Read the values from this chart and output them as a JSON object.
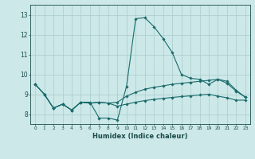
{
  "title": "",
  "xlabel": "Humidex (Indice chaleur)",
  "bg_color": "#cce8e8",
  "grid_color": "#aacccc",
  "line_color": "#1a6b6b",
  "xlim": [
    -0.5,
    23.5
  ],
  "ylim": [
    7.5,
    13.5
  ],
  "xticks": [
    0,
    1,
    2,
    3,
    4,
    5,
    6,
    7,
    8,
    9,
    10,
    11,
    12,
    13,
    14,
    15,
    16,
    17,
    18,
    19,
    20,
    21,
    22,
    23
  ],
  "yticks": [
    8,
    9,
    10,
    11,
    12,
    13
  ],
  "series": [
    [
      9.5,
      9.0,
      8.3,
      8.5,
      8.2,
      8.6,
      8.6,
      7.8,
      7.8,
      7.7,
      9.4,
      12.8,
      12.85,
      12.4,
      11.8,
      11.1,
      10.0,
      9.8,
      9.75,
      9.5,
      9.75,
      9.55,
      9.15,
      8.85
    ],
    [
      9.5,
      9.0,
      8.3,
      8.5,
      8.2,
      8.6,
      8.55,
      8.6,
      8.55,
      8.6,
      8.9,
      9.1,
      9.25,
      9.35,
      9.42,
      9.5,
      9.55,
      9.6,
      9.65,
      9.7,
      9.75,
      9.65,
      9.2,
      8.85
    ],
    [
      9.5,
      9.0,
      8.3,
      8.5,
      8.2,
      8.6,
      8.55,
      8.6,
      8.55,
      8.4,
      8.5,
      8.6,
      8.68,
      8.74,
      8.79,
      8.84,
      8.88,
      8.92,
      8.96,
      9.0,
      8.9,
      8.82,
      8.7,
      8.7
    ]
  ]
}
